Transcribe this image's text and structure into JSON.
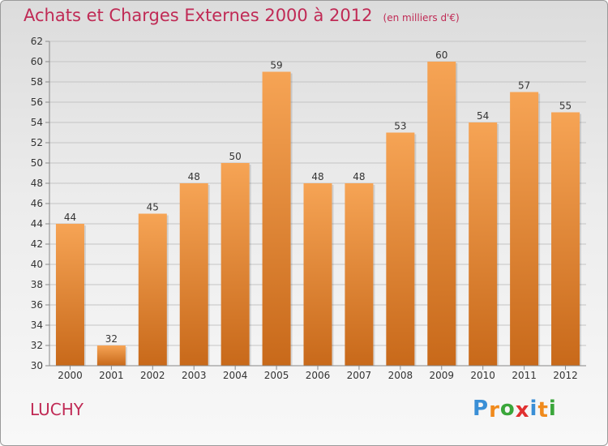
{
  "chart_data": {
    "type": "bar",
    "title": "Achats et Charges Externes 2000 à 2012",
    "subtitle": "(en milliers d'€)",
    "categories": [
      "2000",
      "2001",
      "2002",
      "2003",
      "2004",
      "2005",
      "2006",
      "2007",
      "2008",
      "2009",
      "2010",
      "2011",
      "2012"
    ],
    "values": [
      44,
      32,
      45,
      48,
      50,
      59,
      48,
      48,
      53,
      60,
      54,
      57,
      55
    ],
    "ylim": [
      30,
      62
    ],
    "yticks": [
      30,
      32,
      34,
      36,
      38,
      40,
      42,
      44,
      46,
      48,
      50,
      52,
      54,
      56,
      58,
      60,
      62
    ],
    "grid": true,
    "bar_color": "#f0923a",
    "bar_color_dark": "#c8691a"
  },
  "commune": "LUCHY",
  "logo": {
    "letters": [
      "P",
      "r",
      "o",
      "x",
      "i",
      "t",
      "i"
    ],
    "colors": [
      "#3a8fd6",
      "#f08a1c",
      "#3aa63a",
      "#e03030",
      "#3a8fd6",
      "#f08a1c",
      "#3aa63a"
    ]
  }
}
